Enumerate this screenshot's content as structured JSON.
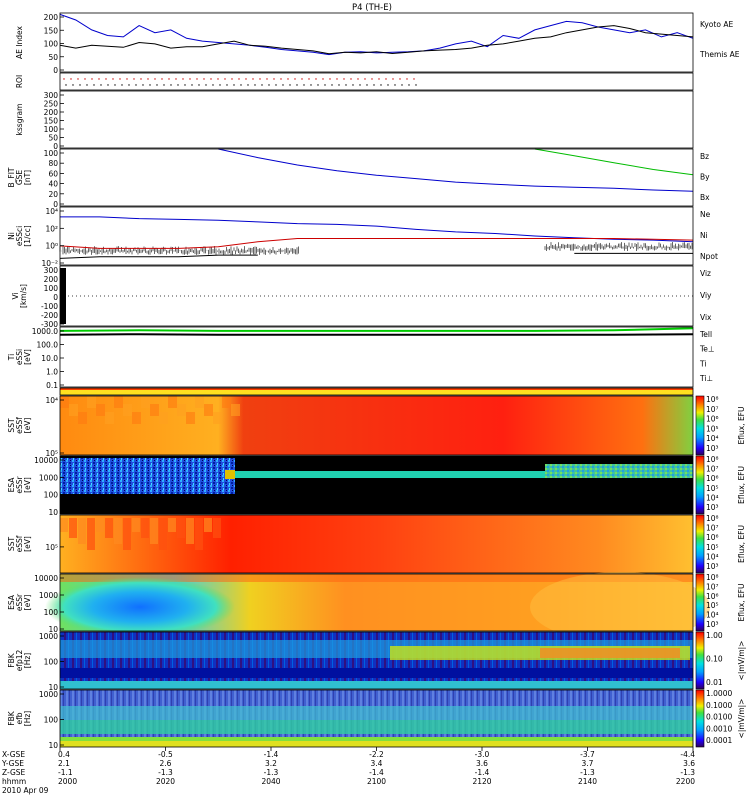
{
  "title": "P4 (TH-E)",
  "chart_data": [
    {
      "type": "line",
      "ylabel": [
        "AE Index"
      ],
      "yticks": [
        "0",
        "50",
        "100",
        "150",
        "200"
      ],
      "ylim": [
        0,
        210
      ],
      "legend": [
        "Kyoto AE",
        "Themis AE"
      ],
      "legend_colors": [
        "#0000cc",
        "#000000"
      ],
      "x": [
        2000,
        2004,
        2008,
        2012,
        2016,
        2020,
        2024,
        2028,
        2032,
        2036,
        2040,
        2044,
        2048,
        2052,
        2056,
        2060,
        2064,
        2068,
        2072,
        2076,
        2080,
        2084,
        2088,
        2092,
        2096,
        2100,
        2104,
        2108,
        2112,
        2116,
        2120,
        2124,
        2128,
        2132,
        2136,
        2140,
        2144,
        2148,
        2152,
        2156,
        2160
      ],
      "series": [
        {
          "name": "Kyoto AE",
          "color": "#0000cc",
          "values": [
            205,
            185,
            150,
            130,
            125,
            165,
            140,
            150,
            120,
            110,
            105,
            100,
            95,
            88,
            80,
            75,
            70,
            62,
            70,
            72,
            68,
            70,
            72,
            75,
            85,
            100,
            110,
            90,
            130,
            120,
            150,
            165,
            180,
            175,
            160,
            150,
            140,
            150,
            125,
            140,
            120
          ]
        },
        {
          "name": "Themis AE",
          "color": "#000000",
          "values": [
            95,
            85,
            95,
            92,
            88,
            105,
            100,
            85,
            90,
            90,
            100,
            110,
            95,
            92,
            85,
            80,
            75,
            65,
            70,
            68,
            72,
            66,
            70,
            75,
            78,
            80,
            85,
            95,
            100,
            110,
            120,
            125,
            140,
            150,
            160,
            165,
            155,
            140,
            135,
            130,
            125
          ]
        }
      ]
    },
    {
      "type": "scatter",
      "ylabel": [
        "ROI"
      ],
      "yticks": [],
      "series_colors": [
        "#cc0000",
        "#000000"
      ]
    },
    {
      "type": "line",
      "ylabel": [
        "kssgram"
      ],
      "yticks": [
        "0",
        "50",
        "100",
        "150",
        "200",
        "250",
        "300"
      ],
      "ylim": [
        0,
        300
      ]
    },
    {
      "type": "line",
      "ylabel": [
        "B_FIT",
        "GSE",
        "[nT]"
      ],
      "yticks": [
        "0",
        "20",
        "40",
        "60",
        "80",
        "100"
      ],
      "ylim": [
        0,
        100
      ],
      "legend": [
        "Bz",
        "By",
        "Bx"
      ],
      "legend_colors": [
        "#cc0000",
        "#00bb00",
        "#0000cc"
      ],
      "x": [
        2040,
        2050,
        2060,
        2070,
        2080,
        2090,
        2100,
        2110,
        2120,
        2130,
        2140,
        2150,
        2160
      ],
      "series": [
        {
          "name": "Bx",
          "color": "#0000cc",
          "values": [
            100,
            85,
            72,
            62,
            54,
            48,
            42,
            38,
            35,
            33,
            31,
            28,
            26
          ]
        },
        {
          "name": "By",
          "color": "#00bb00",
          "values": [
            null,
            null,
            null,
            null,
            null,
            null,
            null,
            null,
            100,
            88,
            76,
            64,
            55
          ]
        },
        {
          "name": "Bz",
          "color": "#cc0000",
          "values": [
            null,
            null,
            null,
            null,
            null,
            null,
            null,
            null,
            null,
            null,
            null,
            null,
            100
          ]
        }
      ]
    },
    {
      "type": "line",
      "ylabel": [
        "Ni",
        "eSSci",
        "[1/cc]"
      ],
      "yticks": [
        "10⁻²",
        "10⁰",
        "10²",
        "10⁴"
      ],
      "ylim": [
        -2,
        5
      ],
      "log": true,
      "legend": [
        "Ne",
        "Ni",
        "Npot"
      ],
      "legend_colors": [
        "#cc0000",
        "#000000",
        "#0000cc"
      ],
      "x": [
        2000,
        2010,
        2020,
        2030,
        2040,
        2050,
        2060,
        2070,
        2080,
        2090,
        2100,
        2110,
        2120,
        2130,
        2140,
        2150,
        2160
      ],
      "series": [
        {
          "name": "Ni",
          "color": "#0000cc",
          "values": [
            3.8,
            3.8,
            3.6,
            3.5,
            3.4,
            3.2,
            3.0,
            2.9,
            2.7,
            2.3,
            2.0,
            1.8,
            1.5,
            1.3,
            1.1,
            1.0,
            0.8
          ]
        },
        {
          "name": "Ne",
          "color": "#cc0000",
          "values": [
            0.3,
            0.0,
            0.0,
            0.0,
            0.2,
            0.8,
            1.2,
            1.2,
            1.2,
            1.2,
            1.2,
            1.2,
            1.2,
            1.2,
            1.2,
            1.1,
            1.0
          ]
        },
        {
          "name": "Npot",
          "color": "#000000",
          "values": [
            -1.2,
            -1.0,
            -1.0,
            -1.0,
            -0.8,
            -0.8,
            null,
            null,
            null,
            null,
            null,
            null,
            null,
            -0.6,
            -0.6,
            -0.6,
            -0.6
          ]
        }
      ]
    },
    {
      "type": "line",
      "ylabel": [
        "Vi",
        "[km/s]"
      ],
      "yticks": [
        "-300",
        "-200",
        "-100",
        "0",
        "100",
        "200",
        "300"
      ],
      "ylim": [
        -350,
        350
      ],
      "legend": [
        "Viz",
        "Viy",
        "Vix"
      ],
      "legend_colors": [
        "#cc0000",
        "#00bb00",
        "#0000cc"
      ]
    },
    {
      "type": "line",
      "ylabel": [
        "Ti",
        "eSSi",
        "[eV]"
      ],
      "yticks": [
        "0.1",
        "1.0",
        "10.0",
        "100.0",
        "1000.0"
      ],
      "ylim": [
        -1.3,
        3.3
      ],
      "log": true,
      "legend": [
        "Tell",
        "Te⊥",
        "Ti",
        "Ti⊥"
      ],
      "legend_colors": [
        "#000000",
        "#cc0000",
        "#00bb00",
        "#0000cc"
      ],
      "x": [
        2000,
        2020,
        2040,
        2060,
        2080,
        2100,
        2120,
        2140,
        2160
      ],
      "series": [
        {
          "name": "Ti",
          "color": "#00cc00",
          "values": [
            3.0,
            3.05,
            3.0,
            3.0,
            3.0,
            3.0,
            3.0,
            3.05,
            3.2
          ]
        },
        {
          "name": "Tell",
          "color": "#000000",
          "values": [
            2.7,
            2.75,
            2.7,
            2.7,
            2.7,
            2.7,
            2.7,
            2.7,
            2.75
          ]
        }
      ]
    },
    {
      "type": "heatmap",
      "ylabel": [
        "SST",
        "eSSf",
        "[eV]"
      ],
      "yticks": [
        "10⁵",
        "10⁴"
      ],
      "colorbar_ticks": [
        "10⁸",
        "10⁷",
        "10⁶",
        "10⁵",
        "10⁴",
        "10³"
      ],
      "colorbar_label": "Eflux, EFU"
    },
    {
      "type": "heatmap",
      "ylabel": [
        "ESA",
        "eSSr",
        "[eV]"
      ],
      "yticks": [
        "10",
        "100",
        "1000",
        "10000"
      ],
      "colorbar_ticks": [
        "10⁸",
        "10⁷",
        "10⁶",
        "10⁵",
        "10⁴",
        "10³"
      ],
      "colorbar_label": "Eflux, EFU"
    },
    {
      "type": "heatmap",
      "ylabel": [
        "SST",
        "eSSf",
        "[eV]"
      ],
      "yticks": [
        "10⁵"
      ],
      "colorbar_ticks": [
        "10⁸",
        "10⁷",
        "10⁶",
        "10⁵",
        "10⁴",
        "10³"
      ],
      "colorbar_label": "Eflux, EFU"
    },
    {
      "type": "heatmap",
      "ylabel": [
        "ESA",
        "eSSr",
        "[eV]"
      ],
      "yticks": [
        "10",
        "100",
        "1000",
        "10000"
      ],
      "colorbar_ticks": [
        "10⁸",
        "10⁷",
        "10⁶",
        "10⁵",
        "10⁴",
        "10³"
      ],
      "colorbar_label": "Eflux, EFU"
    },
    {
      "type": "heatmap",
      "ylabel": [
        "FBK",
        "efp12",
        "[Hz]"
      ],
      "yticks": [
        "10",
        "100",
        "1000"
      ],
      "colorbar_ticks": [
        "1.00",
        "0.10",
        "0.01"
      ],
      "colorbar_label": "<|mV/m|>"
    },
    {
      "type": "heatmap",
      "ylabel": [
        "FBK",
        "efb",
        "[Hz]"
      ],
      "yticks": [
        "10",
        "100",
        "1000"
      ],
      "colorbar_ticks": [
        "1.0000",
        "0.1000",
        "0.0100",
        "0.0010",
        "0.0001"
      ],
      "colorbar_label": "<|mV/m|>"
    }
  ],
  "x_axis": {
    "row_labels": [
      "X-GSE",
      "Y-GSE",
      "Z-GSE",
      "hhmm",
      "2010 Apr 09"
    ],
    "ticks": [
      {
        "x": "0.4",
        "y": "2.1",
        "z": "-1.1",
        "t": "2000"
      },
      {
        "x": "-0.5",
        "y": "2.6",
        "z": "-1.3",
        "t": "2020"
      },
      {
        "x": "-1.4",
        "y": "3.2",
        "z": "-1.3",
        "t": "2040"
      },
      {
        "x": "-2.2",
        "y": "3.4",
        "z": "-1.4",
        "t": "2100"
      },
      {
        "x": "-3.0",
        "y": "3.6",
        "z": "-1.4",
        "t": "2120"
      },
      {
        "x": "-3.7",
        "y": "3.7",
        "z": "-1.3",
        "t": "2140"
      },
      {
        "x": "-4.4",
        "y": "3.6",
        "z": "-1.3",
        "t": "2200"
      }
    ]
  }
}
